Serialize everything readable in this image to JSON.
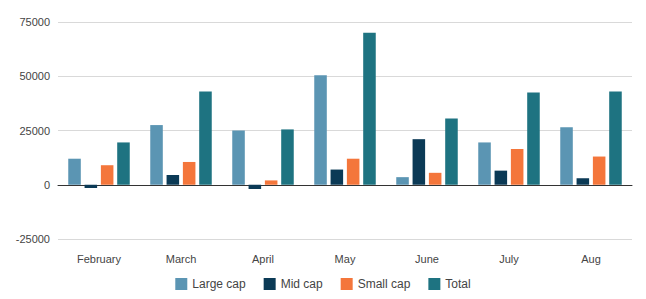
{
  "chart_data": {
    "type": "bar",
    "categories": [
      "February",
      "March",
      "April",
      "May",
      "June",
      "July",
      "Aug"
    ],
    "series": [
      {
        "name": "Large cap",
        "color": "#5b95b3",
        "values": [
          12000,
          27500,
          25000,
          50500,
          3500,
          19500,
          26500
        ]
      },
      {
        "name": "Mid cap",
        "color": "#0b3a56",
        "values": [
          -1500,
          4500,
          -2000,
          7000,
          21000,
          6500,
          3000
        ]
      },
      {
        "name": "Small cap",
        "color": "#f4763b",
        "values": [
          9000,
          10500,
          2000,
          12000,
          5500,
          16500,
          13000
        ]
      },
      {
        "name": "Total",
        "color": "#1e7381",
        "values": [
          19500,
          43000,
          25500,
          70000,
          30500,
          42500,
          43000
        ]
      }
    ],
    "ylim": [
      -25000,
      75000
    ],
    "yticks": [
      -25000,
      0,
      25000,
      50000,
      75000
    ],
    "grid": true,
    "legend": "bottom"
  }
}
